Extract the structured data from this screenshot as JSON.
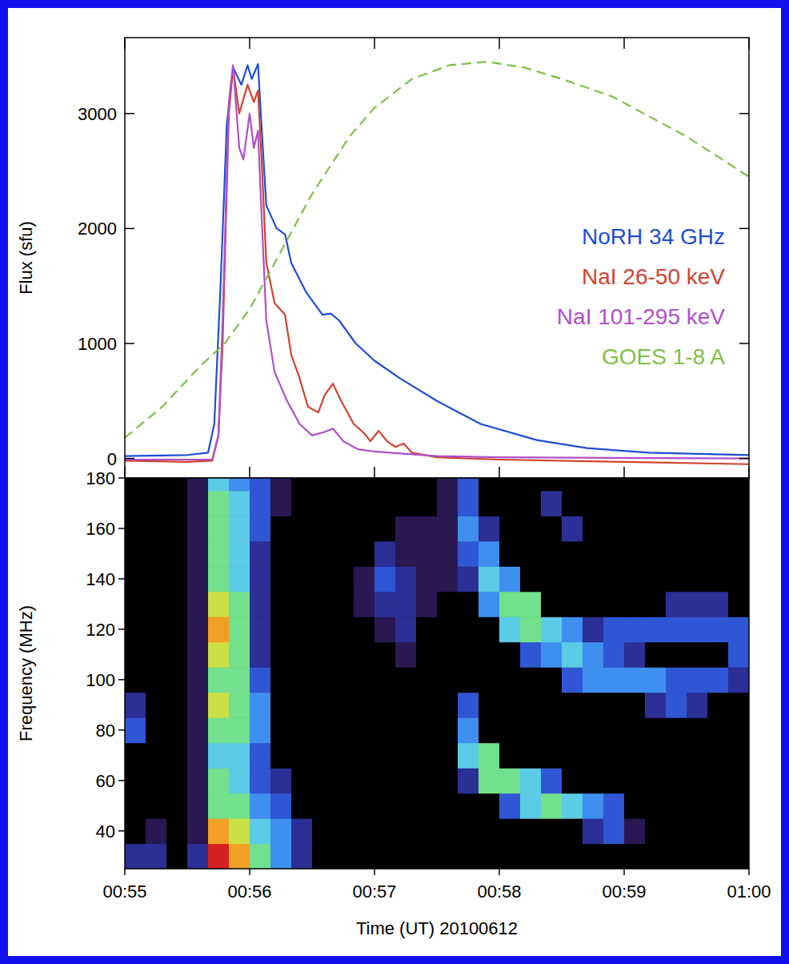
{
  "chart_data": [
    {
      "type": "line",
      "y_label": "Flux (sfu)",
      "xlim": [
        0,
        300
      ],
      "xticks": [
        0,
        60,
        120,
        180,
        240,
        300
      ],
      "ylim": [
        -170,
        3660
      ],
      "yticks": [
        0,
        1000,
        2000,
        3000
      ],
      "tick_labels": "y",
      "legend": "right",
      "grid": false,
      "series": [
        {
          "name": "NoRH 34 GHz",
          "color": "#1d4fd6",
          "line_style": "solid",
          "x": [
            0,
            30,
            40,
            43,
            46,
            49,
            52,
            56,
            59,
            61,
            64,
            66,
            68,
            73,
            77,
            80,
            87,
            95,
            99,
            103,
            111,
            120,
            132,
            150,
            171,
            198,
            222,
            252,
            300
          ],
          "values": [
            20,
            30,
            50,
            300,
            1500,
            2900,
            3400,
            3250,
            3420,
            3300,
            3430,
            2800,
            2200,
            2000,
            1950,
            1700,
            1450,
            1250,
            1260,
            1200,
            1000,
            850,
            700,
            500,
            300,
            160,
            90,
            50,
            30
          ]
        },
        {
          "name": "NaI 26-50 keV",
          "color": "#d0432f",
          "line_style": "solid",
          "x": [
            0,
            30,
            42,
            45,
            47,
            50,
            52,
            55,
            59,
            62,
            64,
            66,
            68,
            72,
            77,
            80,
            84,
            88,
            93,
            96,
            100,
            104,
            110,
            115,
            118,
            122,
            126,
            130,
            134,
            138,
            150,
            180,
            240,
            300
          ],
          "values": [
            -20,
            -30,
            -20,
            200,
            1000,
            3000,
            3400,
            3000,
            3250,
            3100,
            3200,
            2500,
            1700,
            1350,
            1250,
            900,
            700,
            450,
            400,
            550,
            650,
            500,
            300,
            220,
            150,
            240,
            150,
            100,
            130,
            50,
            10,
            -10,
            -30,
            -50
          ]
        },
        {
          "name": "NaI 101-295 keV",
          "color": "#b04fc8",
          "line_style": "solid",
          "x": [
            0,
            42,
            45,
            47,
            50,
            52,
            55,
            57,
            60,
            62,
            64,
            66,
            68,
            72,
            78,
            84,
            90,
            96,
            100,
            105,
            112,
            120,
            150,
            180,
            300
          ],
          "values": [
            -10,
            -10,
            200,
            1200,
            3100,
            3420,
            2700,
            2600,
            3000,
            2700,
            2850,
            2000,
            1200,
            750,
            500,
            300,
            200,
            230,
            260,
            150,
            80,
            60,
            20,
            10,
            0
          ]
        },
        {
          "name": "GOES 1-8 A",
          "color": "#7fbf45",
          "line_style": "dashed",
          "x": [
            0,
            18,
            36,
            48,
            60,
            72,
            90,
            108,
            120,
            138,
            156,
            174,
            192,
            210,
            234,
            270,
            300
          ],
          "values": [
            180,
            450,
            800,
            1000,
            1300,
            1700,
            2300,
            2800,
            3050,
            3300,
            3420,
            3450,
            3400,
            3300,
            3150,
            2800,
            2450
          ]
        }
      ]
    },
    {
      "type": "heatmap",
      "x_label": "Time (UT) 20100612",
      "y_label": "Frequency (MHz)",
      "xlim": [
        0,
        300
      ],
      "xticks": [
        {
          "value": 0,
          "label": "00:55"
        },
        {
          "value": 60,
          "label": "00:56"
        },
        {
          "value": 120,
          "label": "00:57"
        },
        {
          "value": 180,
          "label": "00:58"
        },
        {
          "value": 240,
          "label": "00:59"
        },
        {
          "value": 300,
          "label": "01:00"
        }
      ],
      "ylim": [
        25,
        180
      ],
      "yticks": [
        40,
        60,
        80,
        100,
        120,
        140,
        160,
        180
      ],
      "zlim": [
        0,
        9
      ],
      "x_bins": [
        0,
        10,
        20,
        30,
        40,
        50,
        60,
        70,
        80,
        90,
        100,
        110,
        120,
        130,
        140,
        150,
        160,
        170,
        180,
        190,
        200,
        210,
        220,
        230,
        240,
        250,
        260,
        270,
        280,
        290,
        300
      ],
      "y_bins": [
        25,
        35,
        45,
        55,
        65,
        75,
        85,
        95,
        105,
        115,
        125,
        135,
        145,
        155,
        165,
        175,
        180
      ],
      "values": [
        [
          2,
          2,
          0,
          2,
          9,
          8,
          6,
          4,
          2,
          0,
          0,
          0,
          0,
          0,
          0,
          0,
          0,
          0,
          0,
          0,
          0,
          0,
          0,
          0,
          0,
          0,
          0,
          0,
          0,
          0
        ],
        [
          0,
          1,
          0,
          1,
          8,
          7,
          5,
          4,
          2,
          0,
          0,
          0,
          0,
          0,
          0,
          0,
          0,
          0,
          0,
          0,
          0,
          0,
          2,
          3,
          1,
          0,
          0,
          0,
          0,
          0
        ],
        [
          0,
          0,
          0,
          1,
          6,
          6,
          4,
          3,
          0,
          0,
          0,
          0,
          0,
          0,
          0,
          0,
          0,
          0,
          3,
          5,
          6,
          5,
          4,
          3,
          0,
          0,
          0,
          0,
          0,
          0
        ],
        [
          0,
          0,
          0,
          1,
          6,
          5,
          3,
          2,
          0,
          0,
          0,
          0,
          0,
          0,
          0,
          0,
          2,
          6,
          6,
          5,
          3,
          0,
          0,
          0,
          0,
          0,
          0,
          0,
          0,
          0
        ],
        [
          0,
          0,
          0,
          1,
          5,
          5,
          3,
          0,
          0,
          0,
          0,
          0,
          0,
          0,
          0,
          0,
          5,
          6,
          0,
          0,
          0,
          0,
          0,
          0,
          0,
          0,
          0,
          0,
          0,
          0
        ],
        [
          3,
          0,
          0,
          1,
          6,
          6,
          4,
          0,
          0,
          0,
          0,
          0,
          0,
          0,
          0,
          0,
          4,
          0,
          0,
          0,
          0,
          0,
          0,
          0,
          0,
          0,
          0,
          0,
          0,
          0
        ],
        [
          2,
          0,
          0,
          1,
          7,
          6,
          4,
          0,
          0,
          0,
          0,
          0,
          0,
          0,
          0,
          0,
          3,
          0,
          0,
          0,
          0,
          0,
          0,
          0,
          0,
          2,
          3,
          2,
          0,
          0
        ],
        [
          0,
          0,
          0,
          1,
          6,
          6,
          3,
          0,
          0,
          0,
          0,
          0,
          0,
          0,
          0,
          0,
          0,
          0,
          0,
          0,
          0,
          3,
          4,
          4,
          4,
          4,
          3,
          3,
          3,
          2
        ],
        [
          0,
          0,
          0,
          1,
          7,
          6,
          2,
          0,
          0,
          0,
          0,
          0,
          0,
          1,
          0,
          0,
          0,
          0,
          0,
          3,
          4,
          5,
          4,
          3,
          2,
          0,
          0,
          0,
          0,
          3
        ],
        [
          0,
          0,
          0,
          1,
          8,
          6,
          2,
          0,
          0,
          0,
          0,
          0,
          1,
          2,
          0,
          0,
          0,
          0,
          5,
          6,
          5,
          4,
          2,
          3,
          3,
          3,
          3,
          3,
          3,
          3
        ],
        [
          0,
          0,
          0,
          1,
          7,
          6,
          2,
          0,
          0,
          0,
          0,
          1,
          2,
          2,
          1,
          0,
          0,
          4,
          6,
          6,
          0,
          0,
          0,
          0,
          0,
          0,
          2,
          2,
          2,
          0
        ],
        [
          0,
          0,
          0,
          1,
          6,
          5,
          2,
          0,
          0,
          0,
          0,
          1,
          3,
          2,
          1,
          1,
          2,
          5,
          4,
          0,
          0,
          0,
          0,
          0,
          0,
          0,
          0,
          0,
          0,
          0
        ],
        [
          0,
          0,
          0,
          1,
          6,
          5,
          2,
          0,
          0,
          0,
          0,
          0,
          2,
          1,
          1,
          1,
          3,
          4,
          0,
          0,
          0,
          0,
          0,
          0,
          0,
          0,
          0,
          0,
          0,
          0
        ],
        [
          0,
          0,
          0,
          1,
          6,
          5,
          3,
          0,
          0,
          0,
          0,
          0,
          0,
          1,
          1,
          1,
          4,
          2,
          0,
          0,
          0,
          2,
          0,
          0,
          0,
          0,
          0,
          0,
          0,
          0
        ],
        [
          0,
          0,
          0,
          1,
          6,
          5,
          3,
          1,
          0,
          0,
          0,
          0,
          0,
          0,
          0,
          1,
          3,
          0,
          0,
          0,
          2,
          0,
          0,
          0,
          0,
          0,
          0,
          0,
          0,
          0
        ],
        [
          0,
          0,
          0,
          1,
          5,
          4,
          3,
          1,
          0,
          0,
          0,
          0,
          0,
          0,
          0,
          1,
          3,
          0,
          0,
          0,
          0,
          0,
          0,
          0,
          0,
          0,
          0,
          0,
          0,
          0
        ]
      ]
    }
  ]
}
